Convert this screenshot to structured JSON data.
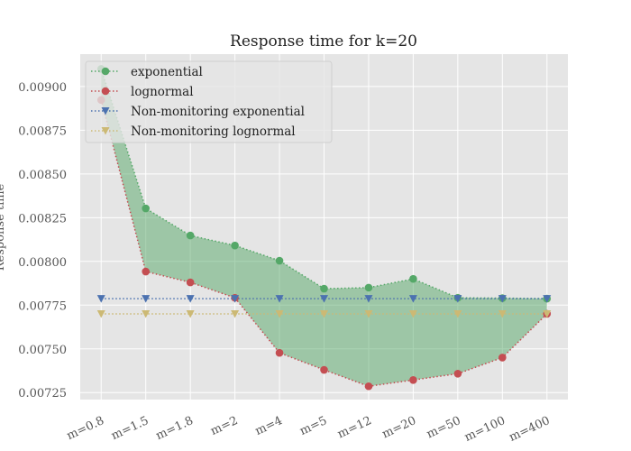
{
  "chart_data": {
    "type": "line",
    "title": "Response time for k=20",
    "y_label": "Response time",
    "categories": [
      "m=0.8",
      "m=1.5",
      "m=1.8",
      "m=2",
      "m=4",
      "m=5",
      "m=12",
      "m=20",
      "m=50",
      "m=100",
      "m=400"
    ],
    "series": [
      {
        "name": "exponential",
        "color": "#55a868",
        "marker": "o",
        "values": [
          0.0091,
          0.008303,
          0.008148,
          0.008091,
          0.008004,
          0.007844,
          0.00785,
          0.0079,
          0.007792,
          0.00779,
          0.007787
        ]
      },
      {
        "name": "lognormal",
        "color": "#c44e52",
        "marker": "o",
        "values": [
          0.008923,
          0.007942,
          0.00788,
          0.007792,
          0.007477,
          0.00738,
          0.007286,
          0.007322,
          0.007358,
          0.00745,
          0.0077
        ]
      },
      {
        "name": "Non-monitoring exponential",
        "color": "#4c72b0",
        "marker": "v",
        "values": [
          0.007787,
          0.007787,
          0.007787,
          0.007787,
          0.007787,
          0.007787,
          0.007787,
          0.007787,
          0.007787,
          0.007787,
          0.007787
        ]
      },
      {
        "name": "Non-monitoring lognormal",
        "color": "#ccb974",
        "marker": "v",
        "values": [
          0.0077,
          0.0077,
          0.0077,
          0.0077,
          0.0077,
          0.0077,
          0.0077,
          0.0077,
          0.0077,
          0.0077,
          0.0077
        ]
      }
    ],
    "fill_between": [
      0,
      1
    ],
    "fill_color": "#55a868",
    "ylim": [
      0.00721,
      0.009185
    ],
    "yticks": [
      0.00725,
      0.0075,
      0.00775,
      0.008,
      0.00825,
      0.0085,
      0.00875,
      0.009
    ],
    "ytick_labels": [
      "0.00725",
      "0.00750",
      "0.00775",
      "0.00800",
      "0.00825",
      "0.00850",
      "0.00875",
      "0.00900"
    ],
    "grid": true,
    "legend": "upper-left"
  }
}
